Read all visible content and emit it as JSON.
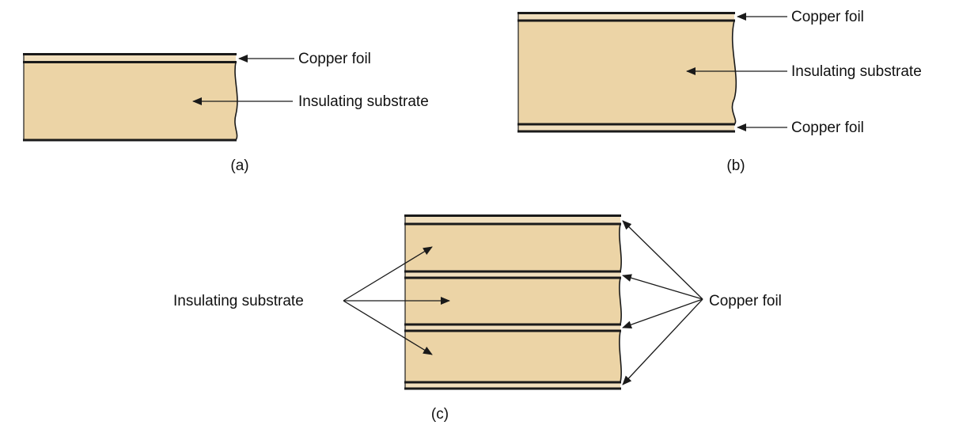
{
  "diagram_a": {
    "caption": "(a)",
    "labels": {
      "foil": "Copper foil",
      "substrate": "Insulating substrate"
    }
  },
  "diagram_b": {
    "caption": "(b)",
    "labels": {
      "foil_top": "Copper foil",
      "substrate": "Insulating substrate",
      "foil_bottom": "Copper foil"
    }
  },
  "diagram_c": {
    "caption": "(c)",
    "labels": {
      "substrate": "Insulating substrate",
      "foil": "Copper foil"
    }
  },
  "colors": {
    "substrate": "#ecd4a6",
    "foil": "#f1dfbd",
    "outline": "#1a1a1a"
  }
}
